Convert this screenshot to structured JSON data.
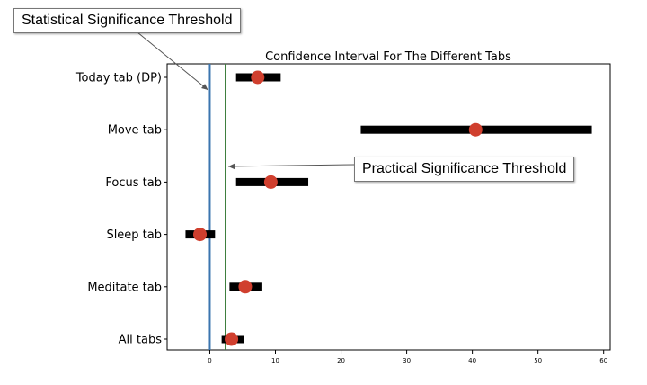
{
  "chart_data": {
    "type": "scatter",
    "title": "Confidence Interval For The Different Tabs",
    "xlabel": "",
    "ylabel": "",
    "xlim": [
      -6.5,
      61
    ],
    "xticks": [
      0,
      10,
      20,
      30,
      40,
      50,
      60
    ],
    "categories": [
      "Today tab (DP)",
      "Move tab",
      "Focus tab",
      "Sleep tab",
      "Meditate tab",
      "All tabs"
    ],
    "estimates": [
      7.3,
      40.5,
      9.3,
      -1.5,
      5.4,
      3.3
    ],
    "ci_low": [
      4.0,
      23.0,
      4.0,
      -3.7,
      3.0,
      1.8
    ],
    "ci_high": [
      10.8,
      58.2,
      15.0,
      0.8,
      8.0,
      5.2
    ],
    "reference_lines": [
      {
        "label": "Statistical Significance Threshold",
        "x": 0,
        "color": "#3b75af"
      },
      {
        "label": "Practical Significance Threshold",
        "x": 2.4,
        "color": "#3f7f3f"
      }
    ],
    "grid": false,
    "colors": {
      "interval": "#000000",
      "marker": "#d03f2e",
      "axis": "#000000"
    }
  },
  "annotations": {
    "statistical": "Statistical Significance Threshold",
    "practical": "Practical Significance Threshold"
  }
}
